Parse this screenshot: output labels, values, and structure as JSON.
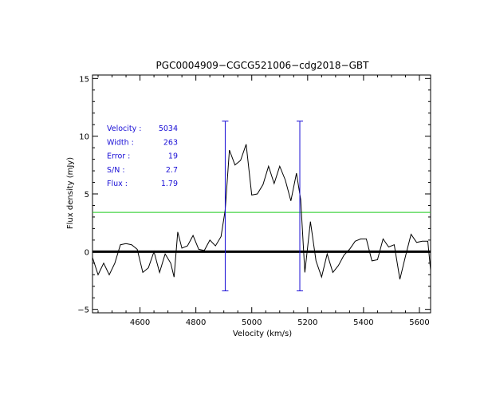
{
  "chart_data": {
    "type": "line",
    "title": "PGC0004909−CGCG521006−cdg2018−GBT",
    "xlabel": "Velocity (km/s)",
    "ylabel": "Flux density (mJy)",
    "xlim": [
      4430,
      5640
    ],
    "ylim": [
      -5.3,
      15.3
    ],
    "xticks": [
      4600,
      4800,
      5000,
      5200,
      5400,
      5600
    ],
    "yticks": [
      -5,
      0,
      5,
      10,
      15
    ],
    "xtick_labels": [
      "4600",
      "4800",
      "5000",
      "5200",
      "5400",
      "5600"
    ],
    "ytick_labels": [
      "−5",
      "0",
      "5",
      "10",
      "15"
    ],
    "series": [
      {
        "name": "spectrum",
        "x": [
          4430,
          4450,
          4470,
          4490,
          4510,
          4530,
          4550,
          4570,
          4590,
          4610,
          4630,
          4650,
          4670,
          4690,
          4710,
          4722,
          4735,
          4750,
          4770,
          4790,
          4810,
          4830,
          4850,
          4870,
          4890,
          4905,
          4920,
          4940,
          4960,
          4980,
          5000,
          5020,
          5040,
          5060,
          5080,
          5100,
          5120,
          5140,
          5160,
          5175,
          5190,
          5210,
          5230,
          5250,
          5270,
          5290,
          5310,
          5330,
          5350,
          5370,
          5390,
          5410,
          5430,
          5450,
          5470,
          5490,
          5510,
          5530,
          5550,
          5570,
          5590,
          5610,
          5630,
          5640
        ],
        "y": [
          -0.5,
          -2.0,
          -1.0,
          -2.0,
          -1.0,
          0.6,
          0.7,
          0.6,
          0.2,
          -1.8,
          -1.4,
          0.0,
          -1.8,
          -0.2,
          -1.0,
          -2.2,
          1.7,
          0.3,
          0.5,
          1.4,
          0.2,
          0.1,
          1.0,
          0.5,
          1.3,
          3.6,
          8.8,
          7.5,
          7.9,
          9.3,
          4.9,
          5.0,
          5.8,
          7.4,
          5.9,
          7.4,
          6.2,
          4.4,
          6.8,
          4.5,
          -1.8,
          2.6,
          -0.8,
          -2.2,
          -0.2,
          -1.8,
          -1.2,
          -0.3,
          0.2,
          0.9,
          1.1,
          1.1,
          -0.8,
          -0.7,
          1.1,
          0.4,
          0.6,
          -2.4,
          -0.4,
          1.5,
          0.8,
          0.9,
          0.9,
          -1.6
        ]
      }
    ],
    "zero_line": 0,
    "rms_line": 3.4,
    "markers": [
      {
        "x": 4905,
        "y_top": 11.3,
        "y_bottom": -3.4
      },
      {
        "x": 5172,
        "y_top": 11.3,
        "y_bottom": -3.4
      }
    ],
    "colors": {
      "spectrum": "#000000",
      "rms_line": "#22cc22",
      "markers": "#1a0fd6",
      "annotation": "#1a0fd6"
    },
    "annotation": [
      {
        "label": "Velocity :",
        "value": "5034"
      },
      {
        "label": "Width   :",
        "value": "263"
      },
      {
        "label": "Error   :",
        "value": "19"
      },
      {
        "label": "S/N     :",
        "value": "2.7"
      },
      {
        "label": "Flux    :",
        "value": "1.79"
      }
    ],
    "grid": false,
    "legend": "none"
  }
}
